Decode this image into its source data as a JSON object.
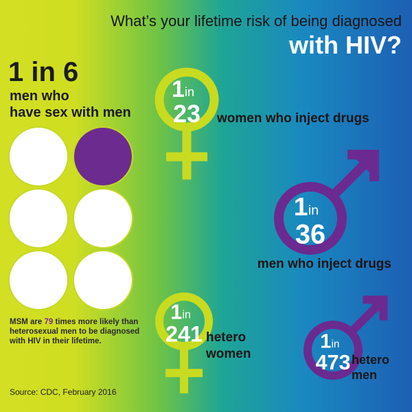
{
  "header": {
    "title_line1": "What’s your lifetime risk of being diagnosed",
    "title_line2": "with HIV?"
  },
  "msm": {
    "risk": "1 in 6",
    "label": [
      "men who",
      "have sex with men"
    ]
  },
  "note": {
    "before": "MSM are",
    "number": "79",
    "after": "times more likely than heterosexual men to be diagnosed with HIV in their lifetime."
  },
  "source": "Source: CDC, February 2016",
  "groups": [
    {
      "symbol": "female",
      "one": "1",
      "in": "in",
      "number": "23",
      "label": [
        "women who inject drugs"
      ]
    },
    {
      "symbol": "male",
      "one": "1",
      "in": "in",
      "number": "36",
      "label": [
        "men who inject drugs"
      ]
    },
    {
      "symbol": "female",
      "one": "1",
      "in": "in",
      "number": "241",
      "label": [
        "hetero",
        "women"
      ]
    },
    {
      "symbol": "male",
      "one": "1",
      "in": "in",
      "number": "473",
      "label": [
        "hetero",
        "men"
      ]
    }
  ]
}
